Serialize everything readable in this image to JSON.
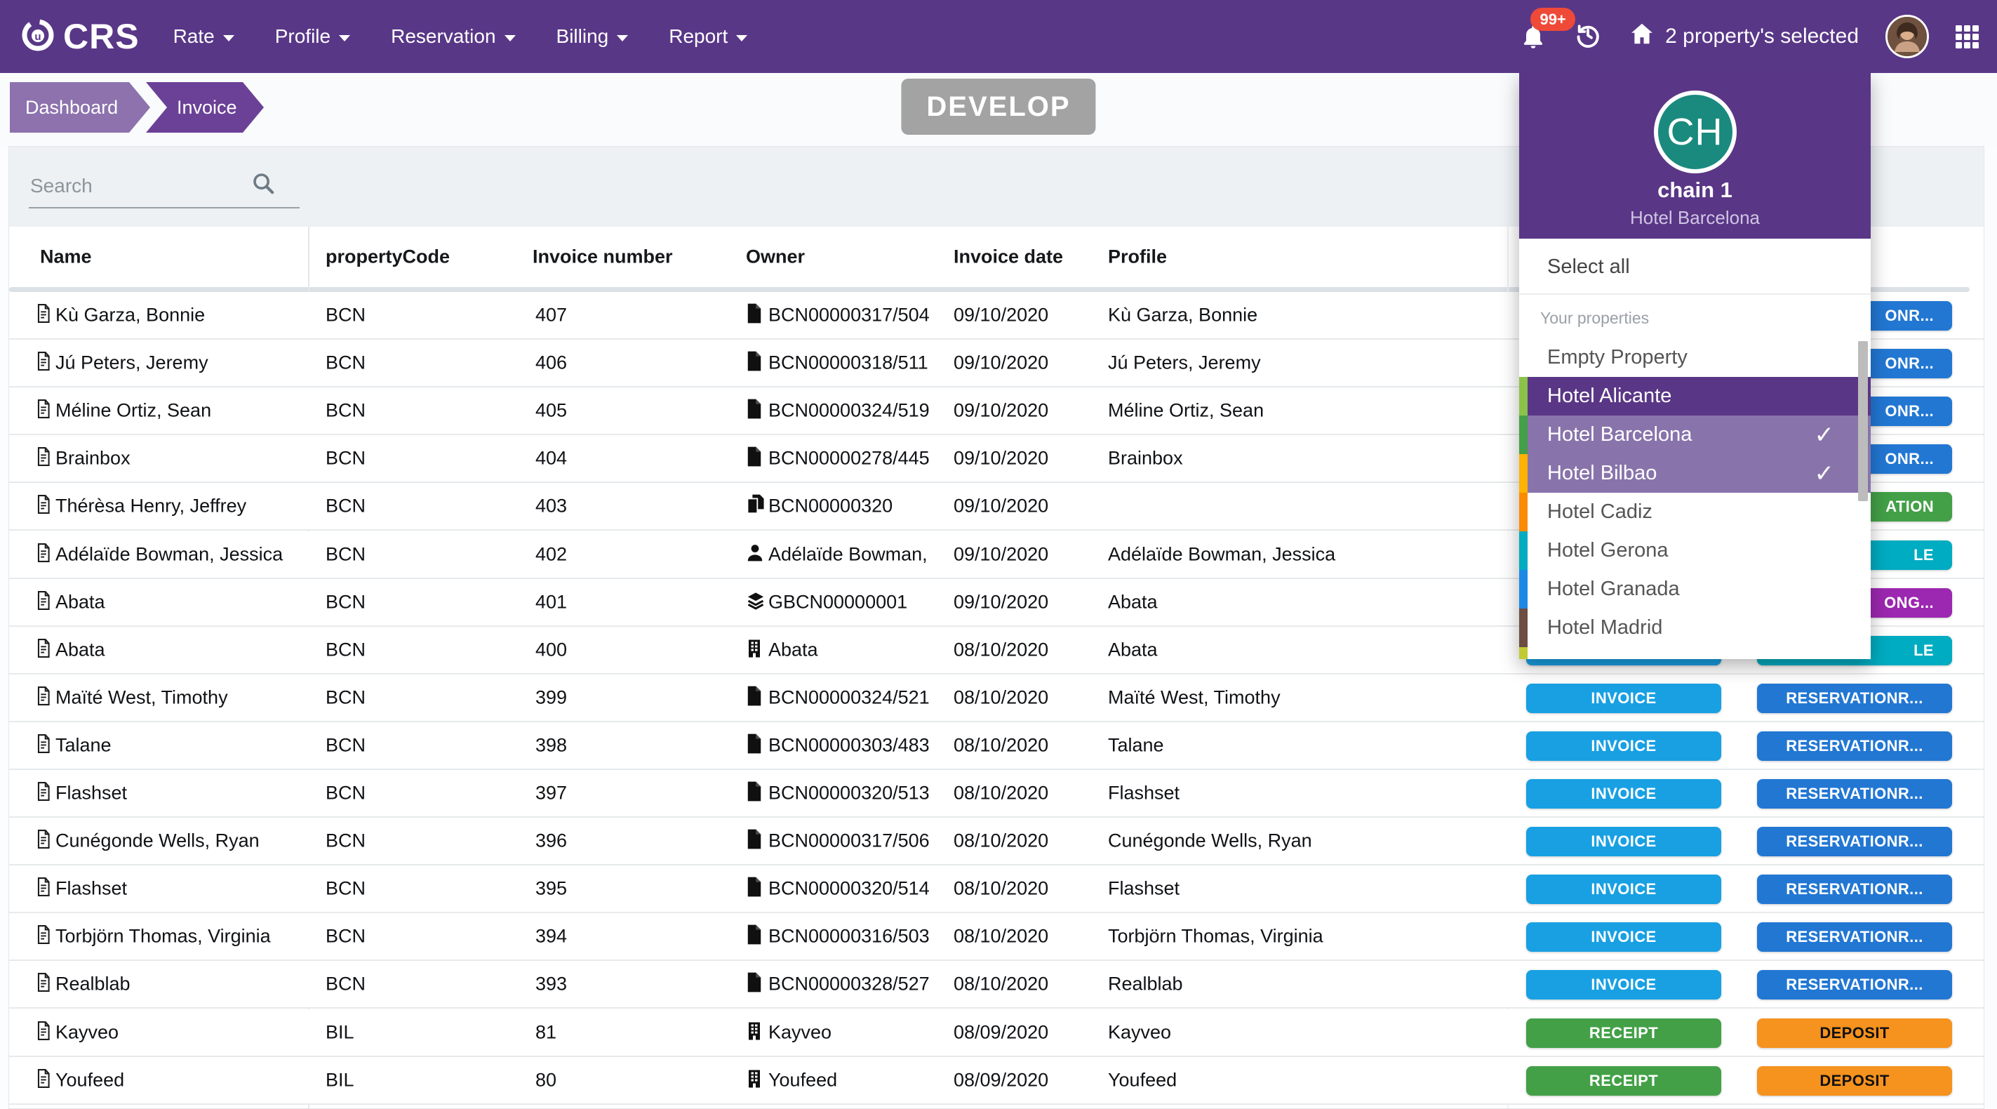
{
  "theme": {
    "brand_purple": "#593787",
    "panel_purple": "#5a3686",
    "panel_purple_light": "#8874ab",
    "invoice_blue": "#18a0e3",
    "reservation_blue": "#2277d3",
    "green": "#43a047",
    "teal": "#00acc1",
    "violet": "#9c27b0",
    "orange": "#f6921e",
    "badge_red": "#ef4a38"
  },
  "navbar": {
    "brand": "CRS",
    "menus": [
      {
        "label": "Rate"
      },
      {
        "label": "Profile"
      },
      {
        "label": "Reservation"
      },
      {
        "label": "Billing"
      },
      {
        "label": "Report"
      }
    ],
    "notification_badge": "99+",
    "properties_selected": "2 property's selected"
  },
  "breadcrumb": {
    "items": [
      "Dashboard",
      "Invoice"
    ]
  },
  "env_badge": "DEVELOP",
  "search": {
    "placeholder": "Search"
  },
  "table": {
    "columns": [
      "Name",
      "propertyCode",
      "Invoice number",
      "Owner",
      "Invoice date",
      "Profile"
    ],
    "rows": [
      {
        "name": "Kù Garza, Bonnie",
        "propertyCode": "BCN",
        "invoiceNumber": "407",
        "ownerIcon": "file",
        "owner": "BCN00000317/504",
        "invoiceDate": "09/10/2020",
        "profile": "Kù Garza, Bonnie",
        "action1": null,
        "action2": {
          "label": "ONR...",
          "color": "#2277d3",
          "clip": true
        }
      },
      {
        "name": "Jú Peters, Jeremy",
        "propertyCode": "BCN",
        "invoiceNumber": "406",
        "ownerIcon": "file",
        "owner": "BCN00000318/511",
        "invoiceDate": "09/10/2020",
        "profile": "Jú Peters, Jeremy",
        "action1": null,
        "action2": {
          "label": "ONR...",
          "color": "#2277d3",
          "clip": true
        }
      },
      {
        "name": "Méline Ortiz, Sean",
        "propertyCode": "BCN",
        "invoiceNumber": "405",
        "ownerIcon": "file",
        "owner": "BCN00000324/519",
        "invoiceDate": "09/10/2020",
        "profile": "Méline Ortiz, Sean",
        "action1": null,
        "action2": {
          "label": "ONR...",
          "color": "#2277d3",
          "clip": true
        }
      },
      {
        "name": "Brainbox",
        "propertyCode": "BCN",
        "invoiceNumber": "404",
        "ownerIcon": "file",
        "owner": "BCN00000278/445",
        "invoiceDate": "09/10/2020",
        "profile": "Brainbox",
        "action1": null,
        "action2": {
          "label": "ONR...",
          "color": "#2277d3",
          "clip": true
        }
      },
      {
        "name": "Thérèsa Henry, Jeffrey",
        "propertyCode": "BCN",
        "invoiceNumber": "403",
        "ownerIcon": "copy",
        "owner": "BCN00000320",
        "invoiceDate": "09/10/2020",
        "profile": "",
        "action1": null,
        "action2": {
          "label": "ATION",
          "color": "#43a047",
          "clip": true
        }
      },
      {
        "name": "Adélaïde Bowman, Jessica",
        "propertyCode": "BCN",
        "invoiceNumber": "402",
        "ownerIcon": "user",
        "owner": "Adélaïde Bowman,",
        "invoiceDate": "09/10/2020",
        "profile": "Adélaïde Bowman, Jessica",
        "action1": null,
        "action2": {
          "label": "LE",
          "color": "#00acc1",
          "clip": true
        }
      },
      {
        "name": "Abata",
        "propertyCode": "BCN",
        "invoiceNumber": "401",
        "ownerIcon": "layers",
        "owner": "GBCN00000001",
        "invoiceDate": "09/10/2020",
        "profile": "Abata",
        "action1": null,
        "action2": {
          "label": "ONG...",
          "color": "#9c27b0",
          "clip": true
        }
      },
      {
        "name": "Abata",
        "propertyCode": "BCN",
        "invoiceNumber": "400",
        "ownerIcon": "building",
        "owner": "Abata",
        "invoiceDate": "08/10/2020",
        "profile": "Abata",
        "action1": {
          "label": "",
          "color": "#18a0e3"
        },
        "action2": {
          "label": "LE",
          "color": "#00acc1",
          "clip": true
        }
      },
      {
        "name": "Maïté West, Timothy",
        "propertyCode": "BCN",
        "invoiceNumber": "399",
        "ownerIcon": "file",
        "owner": "BCN00000324/521",
        "invoiceDate": "08/10/2020",
        "profile": "Maïté West, Timothy",
        "action1": {
          "label": "INVOICE",
          "color": "#18a0e3"
        },
        "action2": {
          "label": "RESERVATIONR...",
          "color": "#2277d3"
        }
      },
      {
        "name": "Talane",
        "propertyCode": "BCN",
        "invoiceNumber": "398",
        "ownerIcon": "file",
        "owner": "BCN00000303/483",
        "invoiceDate": "08/10/2020",
        "profile": "Talane",
        "action1": {
          "label": "INVOICE",
          "color": "#18a0e3"
        },
        "action2": {
          "label": "RESERVATIONR...",
          "color": "#2277d3"
        }
      },
      {
        "name": "Flashset",
        "propertyCode": "BCN",
        "invoiceNumber": "397",
        "ownerIcon": "file",
        "owner": "BCN00000320/513",
        "invoiceDate": "08/10/2020",
        "profile": "Flashset",
        "action1": {
          "label": "INVOICE",
          "color": "#18a0e3"
        },
        "action2": {
          "label": "RESERVATIONR...",
          "color": "#2277d3"
        }
      },
      {
        "name": "Cunégonde Wells, Ryan",
        "propertyCode": "BCN",
        "invoiceNumber": "396",
        "ownerIcon": "file",
        "owner": "BCN00000317/506",
        "invoiceDate": "08/10/2020",
        "profile": "Cunégonde Wells, Ryan",
        "action1": {
          "label": "INVOICE",
          "color": "#18a0e3"
        },
        "action2": {
          "label": "RESERVATIONR...",
          "color": "#2277d3"
        }
      },
      {
        "name": "Flashset",
        "propertyCode": "BCN",
        "invoiceNumber": "395",
        "ownerIcon": "file",
        "owner": "BCN00000320/514",
        "invoiceDate": "08/10/2020",
        "profile": "Flashset",
        "action1": {
          "label": "INVOICE",
          "color": "#18a0e3"
        },
        "action2": {
          "label": "RESERVATIONR...",
          "color": "#2277d3"
        }
      },
      {
        "name": "Torbjörn Thomas, Virginia",
        "propertyCode": "BCN",
        "invoiceNumber": "394",
        "ownerIcon": "file",
        "owner": "BCN00000316/503",
        "invoiceDate": "08/10/2020",
        "profile": "Torbjörn Thomas, Virginia",
        "action1": {
          "label": "INVOICE",
          "color": "#18a0e3"
        },
        "action2": {
          "label": "RESERVATIONR...",
          "color": "#2277d3"
        }
      },
      {
        "name": "Realblab",
        "propertyCode": "BCN",
        "invoiceNumber": "393",
        "ownerIcon": "file",
        "owner": "BCN00000328/527",
        "invoiceDate": "08/10/2020",
        "profile": "Realblab",
        "action1": {
          "label": "INVOICE",
          "color": "#18a0e3"
        },
        "action2": {
          "label": "RESERVATIONR...",
          "color": "#2277d3"
        }
      },
      {
        "name": "Kayveo",
        "propertyCode": "BIL",
        "invoiceNumber": "81",
        "ownerIcon": "building",
        "owner": "Kayveo",
        "invoiceDate": "08/09/2020",
        "profile": "Kayveo",
        "action1": {
          "label": "RECEIPT",
          "color": "#43a047"
        },
        "action2": {
          "label": "DEPOSIT",
          "color": "#f6921e",
          "textColor": "#111111"
        }
      },
      {
        "name": "Youfeed",
        "propertyCode": "BIL",
        "invoiceNumber": "80",
        "ownerIcon": "building",
        "owner": "Youfeed",
        "invoiceDate": "08/09/2020",
        "profile": "Youfeed",
        "action1": {
          "label": "RECEIPT",
          "color": "#43a047"
        },
        "action2": {
          "label": "DEPOSIT",
          "color": "#f6921e",
          "textColor": "#111111"
        }
      }
    ]
  },
  "property_panel": {
    "chain_initials": "CH",
    "chain_name": "chain 1",
    "chain_subtitle": "Hotel Barcelona",
    "select_all": "Select all",
    "group_label": "Your properties",
    "check_glyph": "✓",
    "items": [
      {
        "label": "Empty Property",
        "bar": null,
        "state": "normal"
      },
      {
        "label": "Hotel Alicante",
        "bar": "#8bc34a",
        "state": "active"
      },
      {
        "label": "Hotel Barcelona",
        "bar": "#43a047",
        "state": "selected"
      },
      {
        "label": "Hotel Bilbao",
        "bar": "#ffb300",
        "state": "selected"
      },
      {
        "label": "Hotel Cadiz",
        "bar": "#fb8c00",
        "state": "normal"
      },
      {
        "label": "Hotel Gerona",
        "bar": "#00acc1",
        "state": "normal"
      },
      {
        "label": "Hotel Granada",
        "bar": "#1e88e5",
        "state": "normal"
      },
      {
        "label": "Hotel Madrid",
        "bar": "#6d4c41",
        "state": "normal"
      },
      {
        "label": "",
        "bar": "#c0ca33",
        "state": "partial"
      }
    ]
  }
}
